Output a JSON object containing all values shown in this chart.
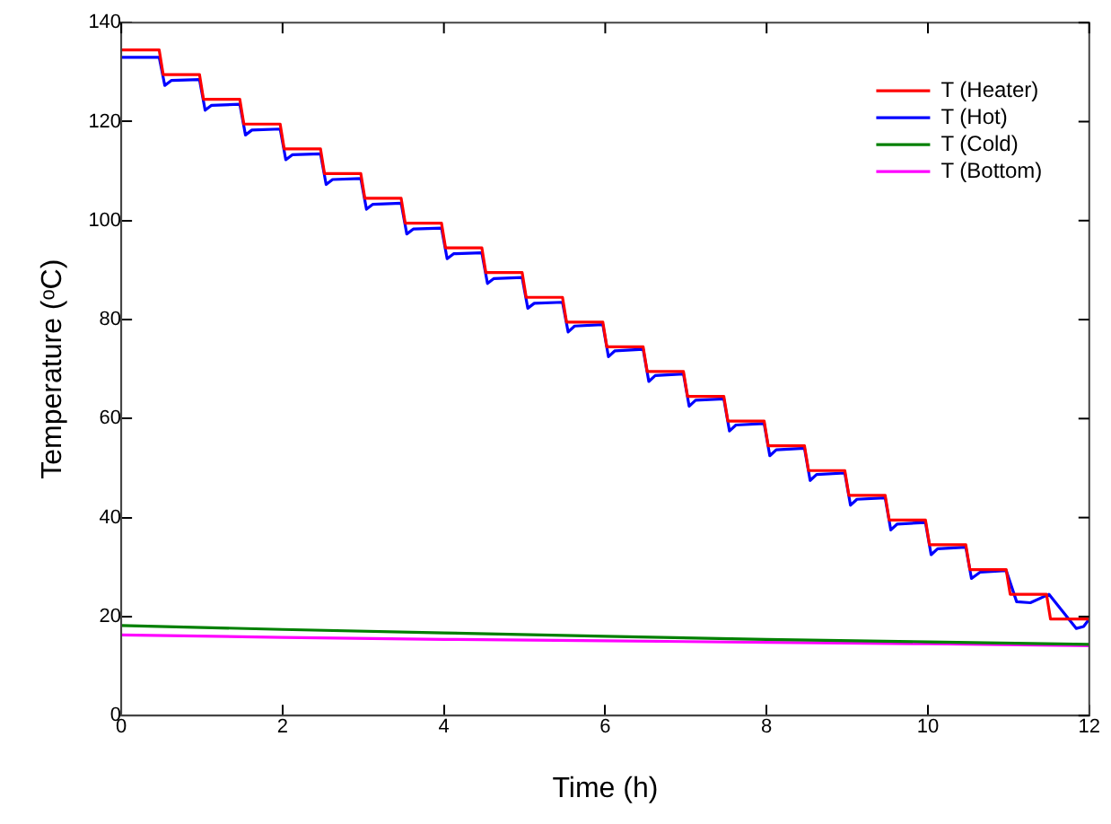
{
  "chart_data": {
    "type": "line",
    "xlabel": "Time (h)",
    "ylabel": "Temperature (ᵒC)",
    "xlim": [
      0,
      12
    ],
    "xticks": [
      0,
      2,
      4,
      6,
      8,
      10,
      12
    ],
    "ylim": [
      0,
      140
    ],
    "yticks": [
      0,
      20,
      40,
      60,
      80,
      100,
      120,
      140
    ],
    "grid": false,
    "legend": "top right",
    "marker": "none",
    "line_style": "solid",
    "series": [
      {
        "name": "T (Heater)",
        "color": "#ff0000",
        "x": [
          0,
          0.47,
          0.52,
          0.97,
          1.02,
          1.47,
          1.52,
          1.97,
          2.02,
          2.47,
          2.52,
          2.97,
          3.02,
          3.47,
          3.52,
          3.97,
          4.02,
          4.47,
          4.52,
          4.97,
          5.02,
          5.47,
          5.52,
          5.97,
          6.02,
          6.47,
          6.52,
          6.97,
          7.02,
          7.47,
          7.52,
          7.97,
          8.02,
          8.47,
          8.52,
          8.97,
          9.02,
          9.47,
          9.52,
          9.97,
          10.02,
          10.47,
          10.52,
          10.97,
          11.02,
          11.47,
          11.52,
          12
        ],
        "values": [
          134.5,
          134.5,
          129.5,
          129.5,
          124.5,
          124.5,
          119.5,
          119.5,
          114.5,
          114.5,
          109.5,
          109.5,
          104.5,
          104.5,
          99.5,
          99.5,
          94.5,
          94.5,
          89.5,
          89.5,
          84.5,
          84.5,
          79.5,
          79.5,
          74.5,
          74.5,
          69.5,
          69.5,
          64.5,
          64.5,
          59.5,
          59.5,
          54.5,
          54.5,
          49.5,
          49.5,
          44.5,
          44.5,
          39.5,
          39.5,
          34.5,
          34.5,
          29.5,
          29.5,
          24.5,
          24.5,
          19.5,
          19.5
        ]
      },
      {
        "name": "T (Hot)",
        "color": "#0000ff",
        "x": [
          0,
          0.47,
          0.54,
          0.62,
          0.97,
          1.04,
          1.12,
          1.47,
          1.54,
          1.62,
          1.97,
          2.04,
          2.12,
          2.47,
          2.54,
          2.62,
          2.97,
          3.04,
          3.12,
          3.47,
          3.54,
          3.62,
          3.97,
          4.04,
          4.12,
          4.47,
          4.54,
          4.62,
          4.97,
          5.04,
          5.12,
          5.47,
          5.54,
          5.62,
          5.97,
          6.04,
          6.12,
          6.47,
          6.54,
          6.62,
          6.97,
          7.04,
          7.12,
          7.47,
          7.54,
          7.62,
          7.97,
          8.04,
          8.12,
          8.47,
          8.54,
          8.62,
          8.97,
          9.04,
          9.12,
          9.47,
          9.54,
          9.62,
          9.97,
          10.04,
          10.12,
          10.47,
          10.54,
          10.65,
          10.97,
          11.1,
          11.27,
          11.5,
          11.84,
          11.93,
          12
        ],
        "values": [
          133,
          133,
          127.3,
          128.3,
          128.5,
          122.3,
          123.3,
          123.5,
          117.3,
          118.3,
          118.5,
          112.3,
          113.3,
          113.5,
          107.3,
          108.3,
          108.5,
          102.3,
          103.3,
          103.5,
          97.3,
          98.3,
          98.5,
          92.3,
          93.3,
          93.5,
          87.3,
          88.3,
          88.5,
          82.3,
          83.3,
          83.5,
          77.5,
          78.7,
          79,
          72.5,
          73.7,
          74,
          67.5,
          68.7,
          69,
          62.5,
          63.7,
          64,
          57.5,
          58.7,
          59,
          52.5,
          53.7,
          54,
          47.5,
          48.7,
          49,
          42.5,
          43.7,
          44,
          37.5,
          38.7,
          39,
          32.5,
          33.7,
          34,
          27.7,
          29,
          29.3,
          23,
          22.8,
          24.5,
          17.6,
          18,
          19.5
        ]
      },
      {
        "name": "T (Cold)",
        "color": "#008000",
        "x": [
          0,
          2,
          4,
          6,
          8,
          10,
          12
        ],
        "values": [
          18.2,
          17.4,
          16.7,
          16,
          15.4,
          14.9,
          14.4
        ]
      },
      {
        "name": "T (Bottom)",
        "color": "#ff00ff",
        "x": [
          0,
          2,
          4,
          6,
          8,
          10,
          12
        ],
        "values": [
          16.3,
          15.8,
          15.4,
          15.1,
          14.8,
          14.5,
          14.1
        ]
      }
    ]
  }
}
